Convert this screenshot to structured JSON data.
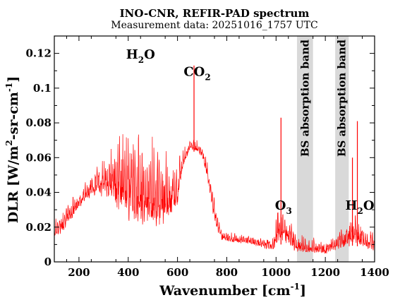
{
  "chart_data": {
    "type": "line",
    "title": "INO-CNR, REFIR-PAD spectrum",
    "subtitle": "Measurement data: 20251016_1757 UTC",
    "xlabel": "Wavenumber [cm",
    "xlabel_sup": "-1",
    "xlabel_end": "]",
    "ylabel": "DLR [W/m",
    "ylabel_sup1": "2",
    "ylabel_mid": "-sr-cm",
    "ylabel_sup2": "-1",
    "ylabel_end": "]",
    "xlim": [
      100,
      1400
    ],
    "ylim": [
      0,
      0.13
    ],
    "x_ticks": [
      200,
      400,
      600,
      800,
      1000,
      1200,
      1400
    ],
    "x_tick_labels": [
      "200",
      "400",
      "600",
      "800",
      "1000",
      "1200",
      "1400"
    ],
    "y_ticks": [
      0,
      0.02,
      0.04,
      0.06,
      0.08,
      0.1,
      0.12
    ],
    "y_tick_labels": [
      "0",
      "0.02",
      "0.04",
      "0.06",
      "0.08",
      "0.1",
      "0.12"
    ],
    "grid": false,
    "series": [
      {
        "color": "#ff0000",
        "envelope": [
          {
            "x": 100,
            "lo": 0.012,
            "hi": 0.026
          },
          {
            "x": 130,
            "lo": 0.016,
            "hi": 0.03
          },
          {
            "x": 160,
            "lo": 0.022,
            "hi": 0.036
          },
          {
            "x": 200,
            "lo": 0.03,
            "hi": 0.042
          },
          {
            "x": 240,
            "lo": 0.036,
            "hi": 0.05
          },
          {
            "x": 280,
            "lo": 0.038,
            "hi": 0.058
          },
          {
            "x": 320,
            "lo": 0.034,
            "hi": 0.066
          },
          {
            "x": 360,
            "lo": 0.028,
            "hi": 0.074
          },
          {
            "x": 400,
            "lo": 0.022,
            "hi": 0.078
          },
          {
            "x": 440,
            "lo": 0.018,
            "hi": 0.078
          },
          {
            "x": 480,
            "lo": 0.016,
            "hi": 0.076
          },
          {
            "x": 520,
            "lo": 0.016,
            "hi": 0.07
          },
          {
            "x": 560,
            "lo": 0.02,
            "hi": 0.064
          },
          {
            "x": 600,
            "lo": 0.03,
            "hi": 0.062
          },
          {
            "x": 620,
            "lo": 0.052,
            "hi": 0.066
          },
          {
            "x": 650,
            "lo": 0.064,
            "hi": 0.071
          },
          {
            "x": 680,
            "lo": 0.063,
            "hi": 0.07
          },
          {
            "x": 700,
            "lo": 0.06,
            "hi": 0.066
          },
          {
            "x": 720,
            "lo": 0.048,
            "hi": 0.06
          },
          {
            "x": 740,
            "lo": 0.03,
            "hi": 0.045
          },
          {
            "x": 760,
            "lo": 0.018,
            "hi": 0.028
          },
          {
            "x": 780,
            "lo": 0.012,
            "hi": 0.019
          },
          {
            "x": 820,
            "lo": 0.011,
            "hi": 0.017
          },
          {
            "x": 880,
            "lo": 0.01,
            "hi": 0.016
          },
          {
            "x": 940,
            "lo": 0.008,
            "hi": 0.015
          },
          {
            "x": 990,
            "lo": 0.006,
            "hi": 0.014
          },
          {
            "x": 1010,
            "lo": 0.01,
            "hi": 0.04
          },
          {
            "x": 1040,
            "lo": 0.01,
            "hi": 0.03
          },
          {
            "x": 1080,
            "lo": 0.005,
            "hi": 0.018
          },
          {
            "x": 1140,
            "lo": 0.004,
            "hi": 0.014
          },
          {
            "x": 1200,
            "lo": 0.004,
            "hi": 0.014
          },
          {
            "x": 1240,
            "lo": 0.006,
            "hi": 0.016
          },
          {
            "x": 1290,
            "lo": 0.008,
            "hi": 0.024
          },
          {
            "x": 1320,
            "lo": 0.01,
            "hi": 0.03
          },
          {
            "x": 1360,
            "lo": 0.006,
            "hi": 0.022
          },
          {
            "x": 1400,
            "lo": 0.004,
            "hi": 0.018
          }
        ],
        "spikes": [
          {
            "x": 667,
            "y": 0.113
          },
          {
            "x": 1020,
            "y": 0.083
          },
          {
            "x": 1330,
            "y": 0.081
          },
          {
            "x": 1310,
            "y": 0.06
          }
        ]
      }
    ],
    "bands": [
      {
        "x0": 1085,
        "x1": 1150,
        "label": "BS absorption band",
        "color": "#d9d9d9"
      },
      {
        "x0": 1240,
        "x1": 1295,
        "label": "BS absorption band",
        "color": "#d9d9d9"
      }
    ],
    "annotations": [
      {
        "text": "H",
        "sub": "2",
        "text2": "O",
        "x": 450,
        "y": 0.117
      },
      {
        "text": "CO",
        "sub": "2",
        "text2": "",
        "x": 680,
        "y": 0.107
      },
      {
        "text": "O",
        "sub": "3",
        "text2": "",
        "x": 1030,
        "y": 0.03
      },
      {
        "text": "H",
        "sub": "2",
        "text2": "O",
        "x": 1340,
        "y": 0.03
      }
    ]
  }
}
